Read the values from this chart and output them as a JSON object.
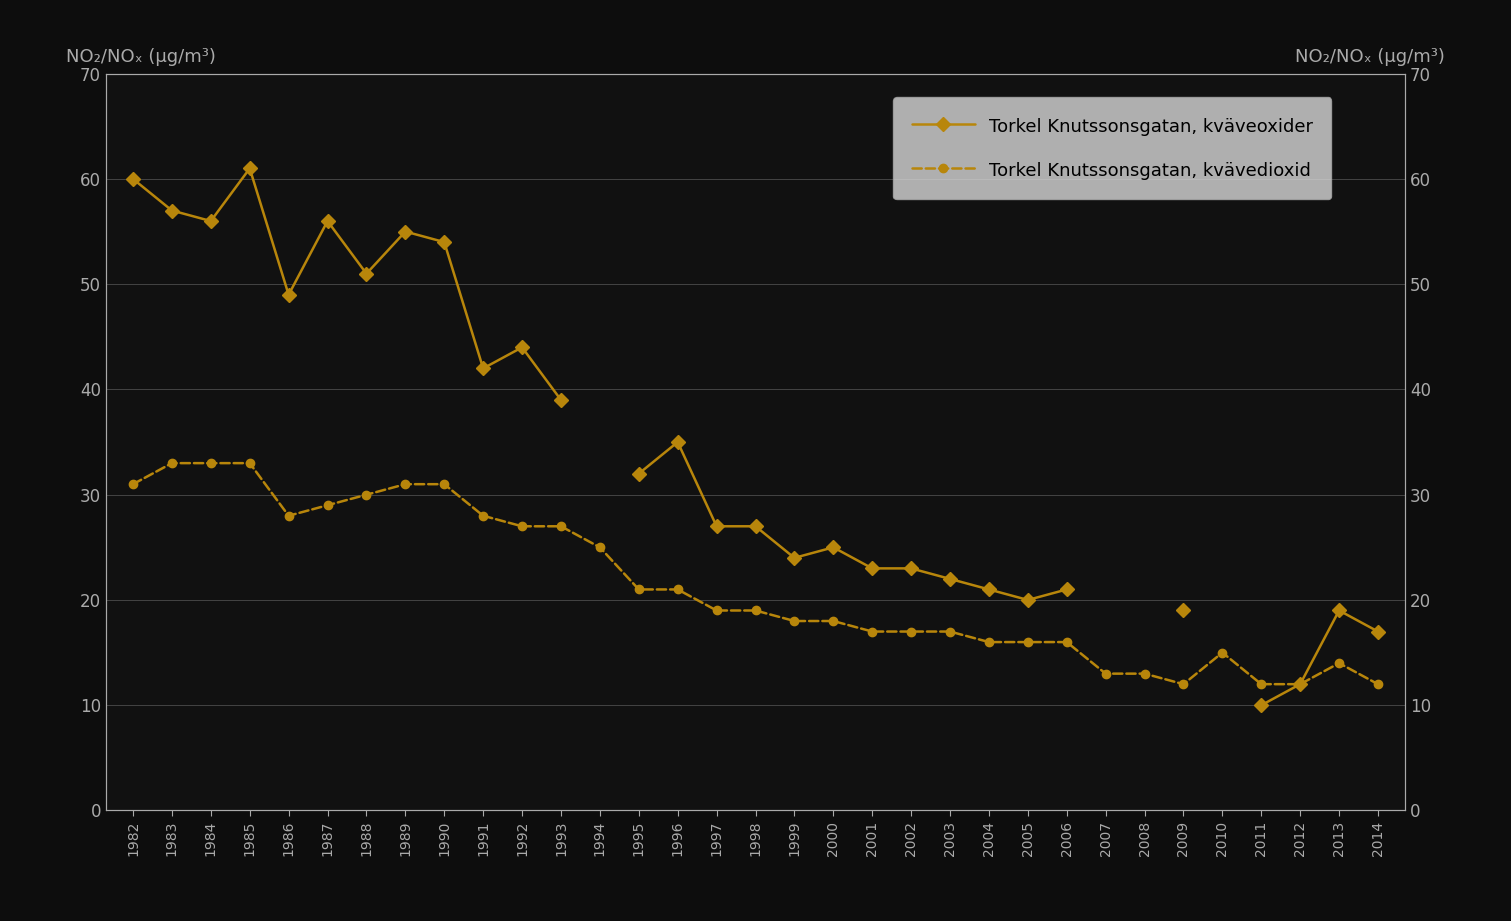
{
  "years": [
    1982,
    1983,
    1984,
    1985,
    1986,
    1987,
    1988,
    1989,
    1990,
    1991,
    1992,
    1993,
    1994,
    1995,
    1996,
    1997,
    1998,
    1999,
    2000,
    2001,
    2002,
    2003,
    2004,
    2005,
    2006,
    2007,
    2008,
    2009,
    2010,
    2011,
    2012,
    2013,
    2014
  ],
  "nox": [
    60,
    57,
    56,
    61,
    49,
    56,
    51,
    55,
    54,
    42,
    44,
    39,
    null,
    32,
    35,
    27,
    27,
    24,
    25,
    23,
    23,
    22,
    21,
    20,
    21,
    null,
    null,
    19,
    null,
    10,
    12,
    19,
    17
  ],
  "no2": [
    31,
    33,
    33,
    33,
    28,
    29,
    30,
    31,
    31,
    28,
    27,
    27,
    25,
    21,
    21,
    19,
    19,
    18,
    18,
    17,
    17,
    17,
    16,
    16,
    16,
    13,
    13,
    12,
    15,
    12,
    12,
    14,
    12
  ],
  "nox_label": "Torkel Knutssonsgatan, kväveoxider",
  "no2_label": "Torkel Knutssonsgatan, kvävedioxid",
  "ylabel_left": "NO₂/NOₓ (μg/m³)",
  "ylabel_right": "NO₂/NOₓ (μg/m³)",
  "ylim": [
    0,
    70
  ],
  "yticks": [
    0,
    10,
    20,
    30,
    40,
    50,
    60,
    70
  ],
  "line_color": "#b8860b",
  "bg_color": "#0d0d0d",
  "plot_bg_color": "#111111",
  "grid_color": "#444444",
  "text_color": "#aaaaaa",
  "legend_bg": "#d8d8d8",
  "legend_text_color": "#000000",
  "legend_edge_color": "#aaaaaa"
}
